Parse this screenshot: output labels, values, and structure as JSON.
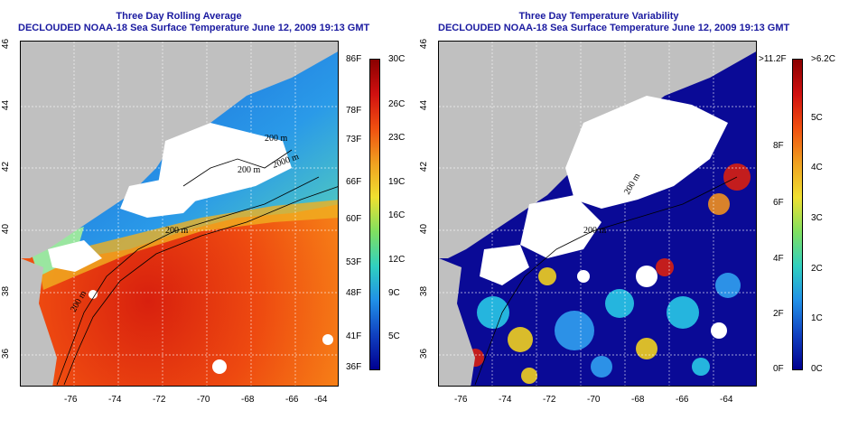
{
  "left_panel": {
    "title_line1": "Three Day Rolling Average",
    "title_line2": "DECLOUDED NOAA-18 Sea Surface Temperature June 12, 2009 19:13 GMT",
    "x_ticks": [
      "-76",
      "-74",
      "-72",
      "-70",
      "-68",
      "-66",
      "-64"
    ],
    "y_ticks": [
      "46",
      "44",
      "42",
      "40",
      "38",
      "36"
    ],
    "contours": [
      "200 m",
      "200 m",
      "200 m",
      "2000 m",
      "200 m"
    ],
    "colorbar_f": [
      "86F",
      "78F",
      "73F",
      "66F",
      "60F",
      "53F",
      "48F",
      "41F",
      "36F"
    ],
    "colorbar_c": [
      "30C",
      "26C",
      "23C",
      "19C",
      "16C",
      "12C",
      "9C",
      "5C"
    ],
    "colors": {
      "warm": "#e8400e",
      "hot": "#c81810",
      "mid": "#f0a020",
      "cool": "#5ad2a0",
      "cold": "#1e6ed8",
      "land": "#c0c0c0"
    }
  },
  "right_panel": {
    "title_line1": "Three Day Temperature Variability",
    "title_line2": "DECLOUDED NOAA-18 Sea Surface Temperature June 12, 2009 19:13 GMT",
    "x_ticks": [
      "-76",
      "-74",
      "-72",
      "-70",
      "-68",
      "-66",
      "-64"
    ],
    "y_ticks": [
      "46",
      "44",
      "42",
      "40",
      "38",
      "36"
    ],
    "contours": [
      "200 m",
      "200 m"
    ],
    "colorbar_f": [
      ">11.2F",
      "8F",
      "6F",
      "4F",
      "2F",
      "0F"
    ],
    "colorbar_c": [
      ">6.2C",
      "5C",
      "4C",
      "3C",
      "2C",
      "1C",
      "0C"
    ],
    "colors": {
      "low": "#0a0a96",
      "mid": "#28c8e6",
      "high": "#f0d020",
      "peak": "#d82010",
      "land": "#c0c0c0"
    }
  }
}
